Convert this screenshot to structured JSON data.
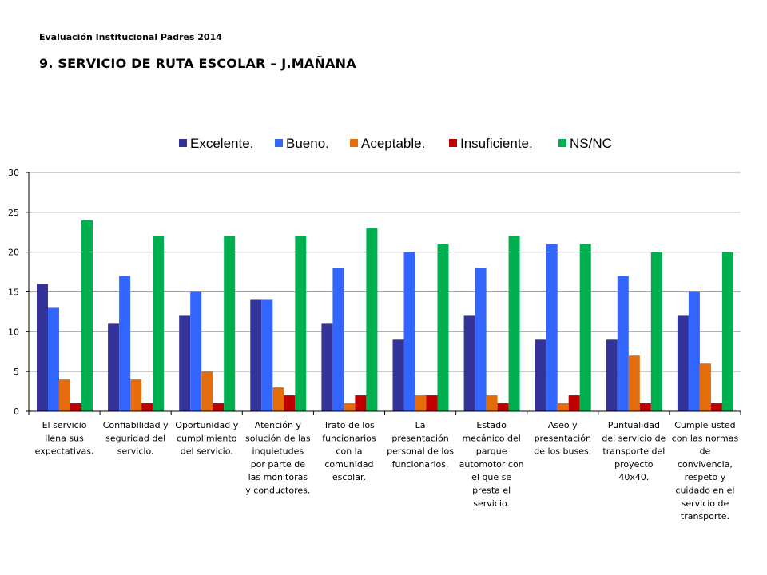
{
  "header": {
    "subtitle": "Evaluación Institucional Padres 2014",
    "title": "9. SERVICIO DE RUTA ESCOLAR – J.MAÑANA"
  },
  "chart_data": {
    "type": "bar",
    "title": "",
    "xlabel": "",
    "ylabel": "",
    "ylim": [
      0,
      30
    ],
    "yticks": [
      0,
      5,
      10,
      15,
      20,
      25,
      30
    ],
    "grid": true,
    "legend_position": "top",
    "categories": [
      [
        "El servicio",
        "llena  sus",
        "expectativas."
      ],
      [
        "Confiabilidad y",
        "seguridad del",
        "servicio."
      ],
      [
        "Oportunidad y",
        "cumplimiento",
        "del servicio."
      ],
      [
        "Atención y",
        "solución de las",
        "inquietudes",
        "por parte de",
        "las monitoras",
        "y conductores."
      ],
      [
        "Trato de los",
        "funcionarios",
        "con la",
        "comunidad",
        "escolar."
      ],
      [
        "La",
        "presentación",
        "personal de los",
        "funcionarios."
      ],
      [
        "Estado",
        "mecánico del",
        "parque",
        "automotor con",
        "el que se",
        "presta el",
        "servicio."
      ],
      [
        "Aseo y",
        "presentación",
        "de los buses."
      ],
      [
        "Puntualidad",
        "del servicio de",
        "transporte del",
        "proyecto",
        "40x40."
      ],
      [
        "Cumple usted",
        "con las normas",
        "de",
        "convivencia,",
        "respeto y",
        "cuidado en el",
        "servicio de",
        "transporte."
      ]
    ],
    "series": [
      {
        "name": "Excelente.",
        "color": "#333399",
        "values": [
          16,
          11,
          12,
          14,
          11,
          9,
          12,
          9,
          9,
          12
        ]
      },
      {
        "name": "Bueno.",
        "color": "#3366ff",
        "values": [
          13,
          17,
          15,
          14,
          18,
          20,
          18,
          21,
          17,
          15
        ]
      },
      {
        "name": "Aceptable.",
        "color": "#e46c0a",
        "values": [
          4,
          4,
          5,
          3,
          1,
          2,
          2,
          1,
          7,
          6
        ]
      },
      {
        "name": "Insuficiente.",
        "color": "#c00000",
        "values": [
          1,
          1,
          1,
          2,
          2,
          2,
          1,
          2,
          1,
          1
        ]
      },
      {
        "name": "NS/NC",
        "color": "#00b050",
        "values": [
          24,
          22,
          22,
          22,
          23,
          21,
          22,
          21,
          20,
          20
        ]
      }
    ]
  }
}
